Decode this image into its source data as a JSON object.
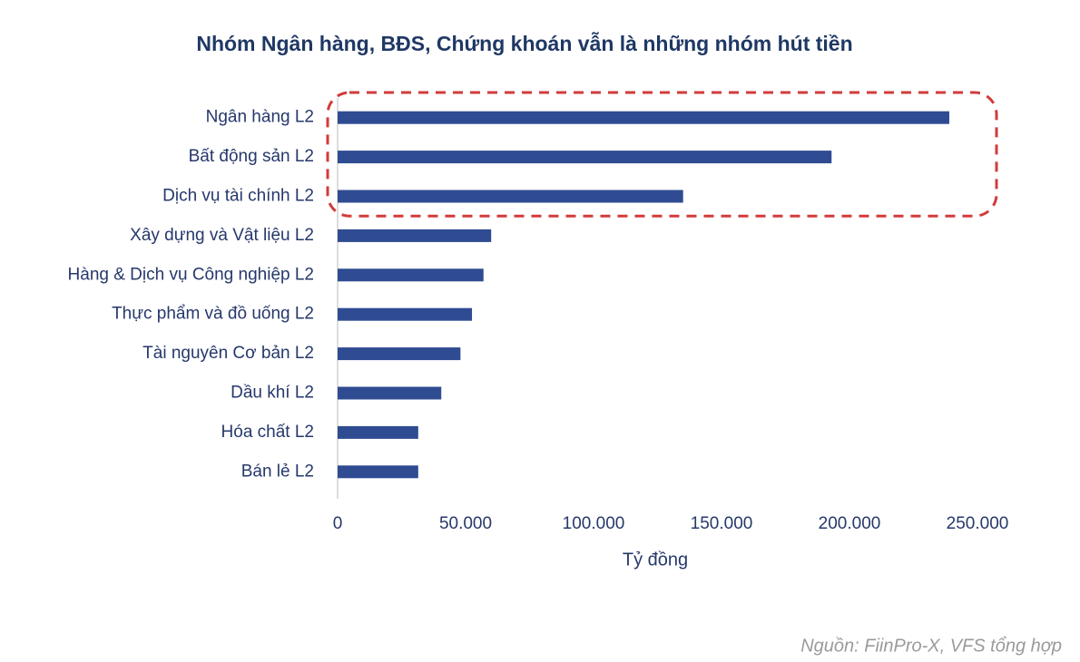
{
  "chart_data": {
    "type": "bar",
    "orientation": "horizontal",
    "title": "Nhóm Ngân hàng, BĐS, Chứng khoán vẫn là những nhóm hút tiền",
    "categories": [
      "Ngân hàng L2",
      "Bất động sản L2",
      "Dịch vụ tài chính L2",
      "Xây dựng và Vật liệu L2",
      "Hàng & Dịch vụ Công nghiệp L2",
      "Thực phẩm và đồ uống L2",
      "Tài nguyên Cơ bản L2",
      "Dầu khí L2",
      "Hóa chất L2",
      "Bán lẻ L2"
    ],
    "values": [
      239000,
      193000,
      135000,
      60000,
      57000,
      52500,
      48000,
      40500,
      31500,
      31500
    ],
    "color": "#2f4b91",
    "xlim": [
      0,
      250000
    ],
    "xticks": [
      0,
      {
        "value": 50000,
        "label": "50.000"
      },
      {
        "value": 100000,
        "label": "100.000"
      },
      {
        "value": 150000,
        "label": "150.000"
      },
      {
        "value": 200000,
        "label": "200.000"
      },
      {
        "value": 250000,
        "label": "250.000"
      }
    ],
    "xlabel": "Tỷ đồng",
    "source": "Nguồn: FiinPro-X, VFS tổng hợp",
    "grid": false
  }
}
